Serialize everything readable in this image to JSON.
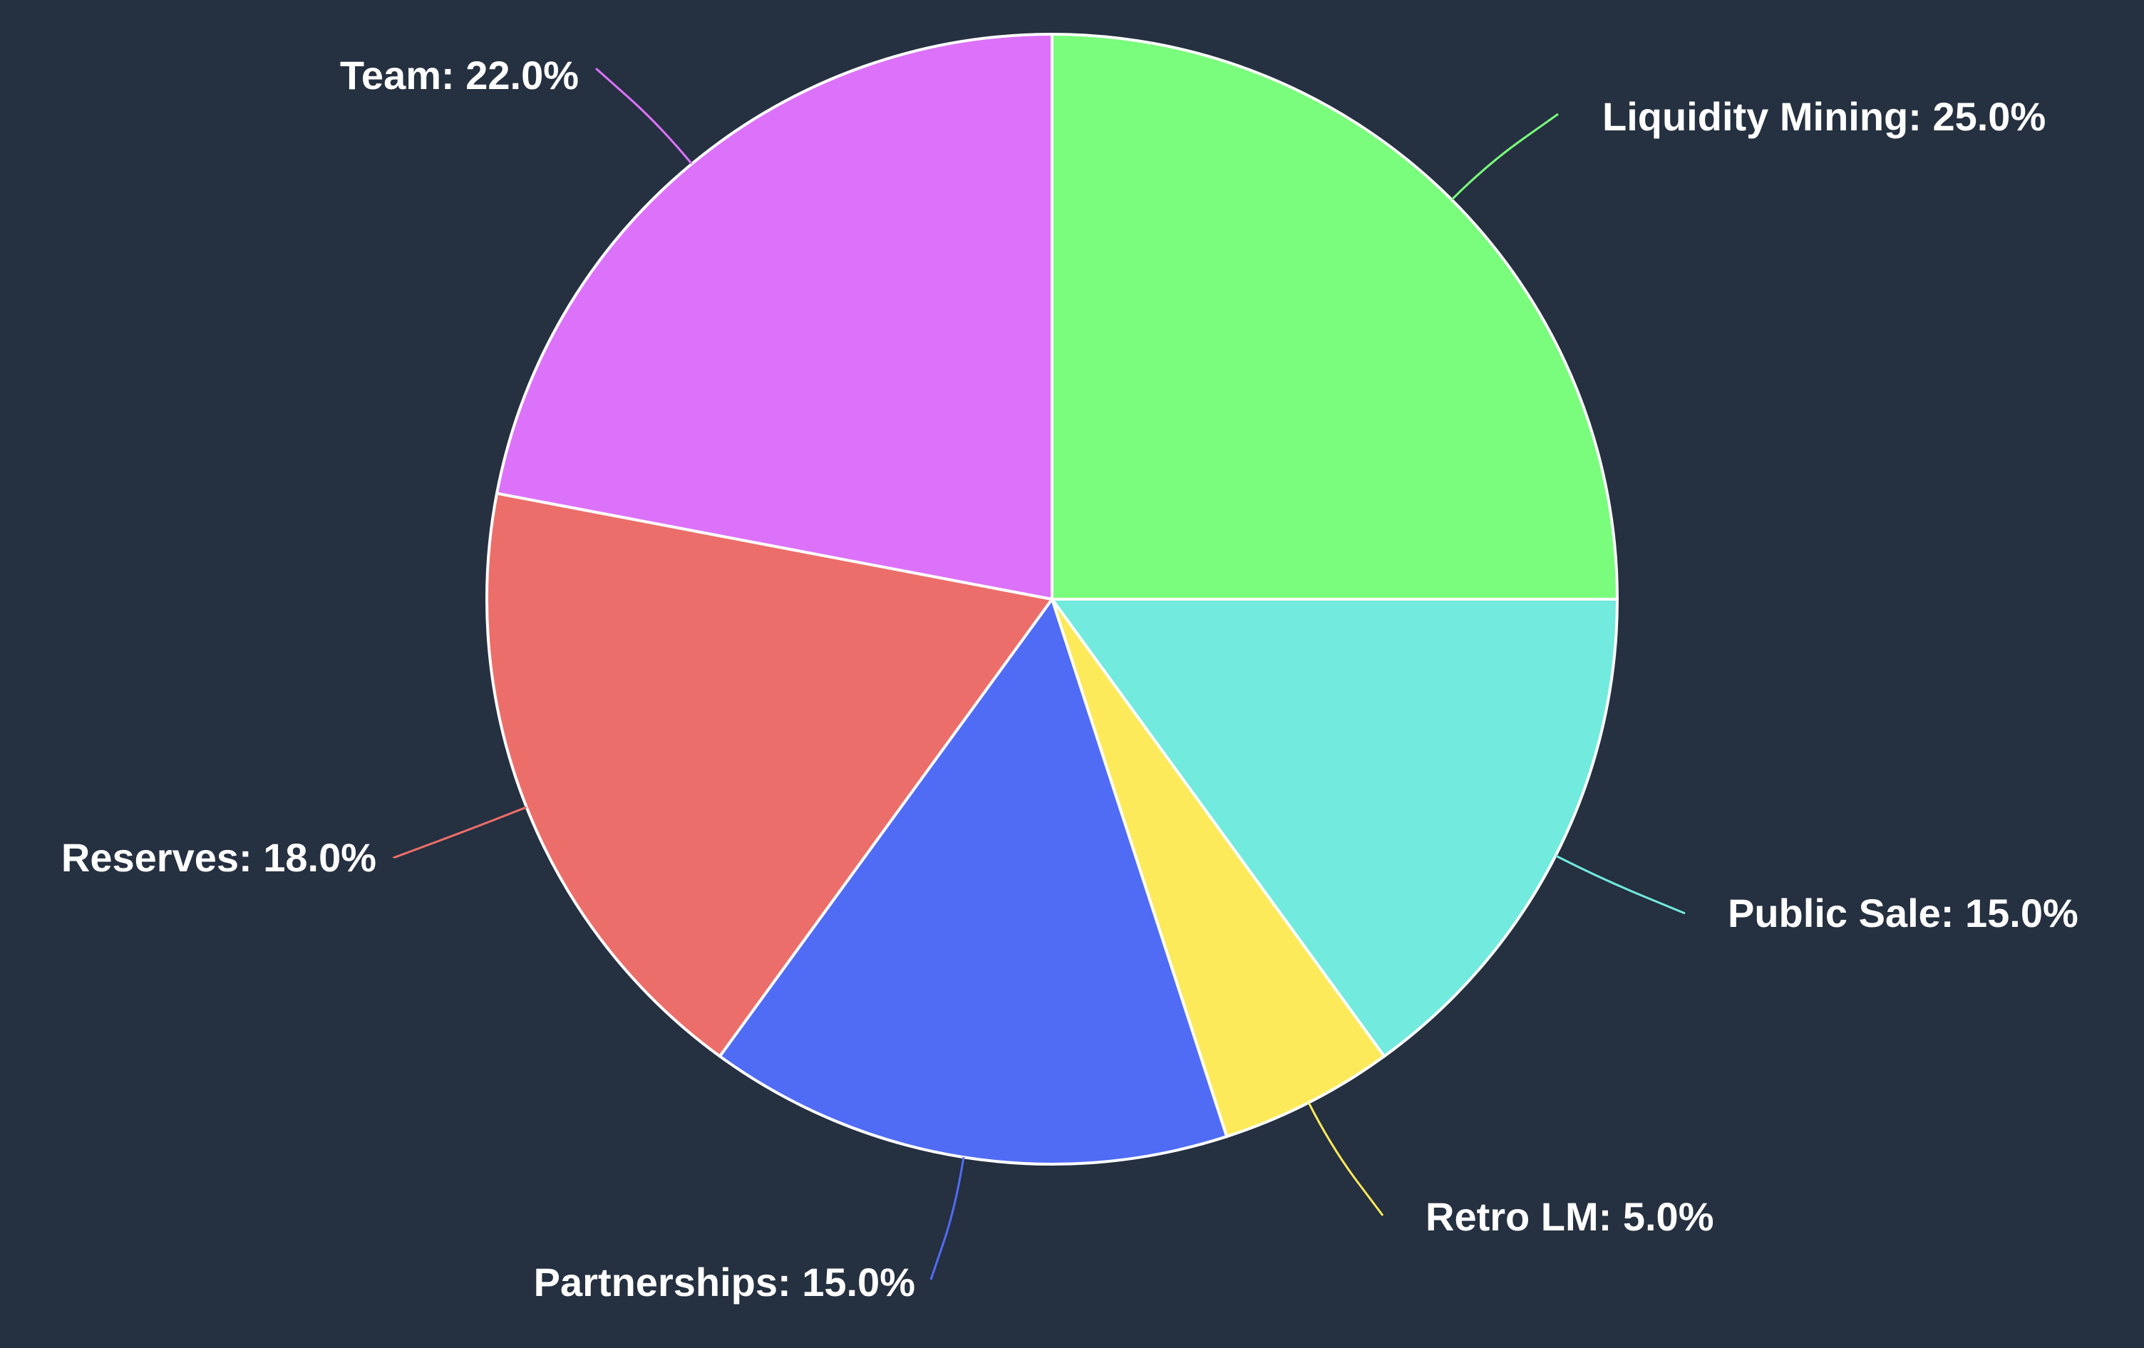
{
  "chart_data": {
    "type": "pie",
    "title": "",
    "start_angle_deg": 0,
    "direction": "clockwise",
    "background_color": "#253040",
    "slices": [
      {
        "label": "Liquidity Mining",
        "value": 25.0,
        "display": "Liquidity Mining: 25.0%",
        "color": "#7afc7c"
      },
      {
        "label": "Public Sale",
        "value": 15.0,
        "display": "Public Sale: 15.0%",
        "color": "#72eadd"
      },
      {
        "label": "Retro LM",
        "value": 5.0,
        "display": "Retro LM: 5.0%",
        "color": "#fdea5a"
      },
      {
        "label": "Partnerships",
        "value": 15.0,
        "display": "Partnerships: 15.0%",
        "color": "#506cf5"
      },
      {
        "label": "Reserves",
        "value": 18.0,
        "display": "Reserves: 18.0%",
        "color": "#ec6e6a"
      },
      {
        "label": "Team",
        "value": 22.0,
        "display": "Team: 22.0%",
        "color": "#dc72fa"
      }
    ]
  }
}
